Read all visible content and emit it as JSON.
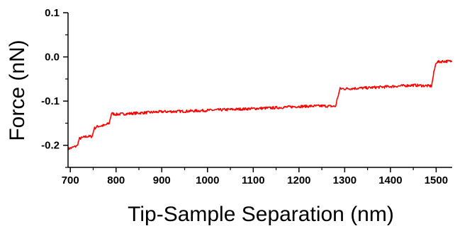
{
  "chart_data": {
    "type": "line",
    "xlabel": "Tip-Sample Separation (nm)",
    "ylabel": "Force (nN)",
    "xlim": [
      695,
      1535
    ],
    "ylim": [
      -0.25,
      0.1
    ],
    "x_ticks": [
      700,
      800,
      900,
      1000,
      1100,
      1200,
      1300,
      1400,
      1500
    ],
    "y_ticks": [
      0.1,
      0.0,
      -0.1,
      -0.2
    ],
    "y_tick_labels": [
      "0.1",
      "0.0",
      "-0.1",
      "-0.2"
    ],
    "grid": false,
    "series": [
      {
        "color": "#ff0000",
        "x": [
          695,
          705,
          715,
          720,
          735,
          748,
          752,
          760,
          775,
          785,
          790,
          800,
          850,
          900,
          950,
          1000,
          1050,
          1100,
          1150,
          1200,
          1250,
          1280,
          1285,
          1290,
          1300,
          1350,
          1400,
          1450,
          1490,
          1495,
          1500,
          1515,
          1535
        ],
        "y": [
          -0.208,
          -0.205,
          -0.201,
          -0.185,
          -0.18,
          -0.18,
          -0.162,
          -0.157,
          -0.155,
          -0.15,
          -0.128,
          -0.13,
          -0.127,
          -0.124,
          -0.123,
          -0.121,
          -0.119,
          -0.117,
          -0.115,
          -0.112,
          -0.111,
          -0.112,
          -0.09,
          -0.072,
          -0.072,
          -0.07,
          -0.067,
          -0.064,
          -0.066,
          -0.035,
          -0.012,
          -0.01,
          -0.01
        ]
      }
    ]
  }
}
